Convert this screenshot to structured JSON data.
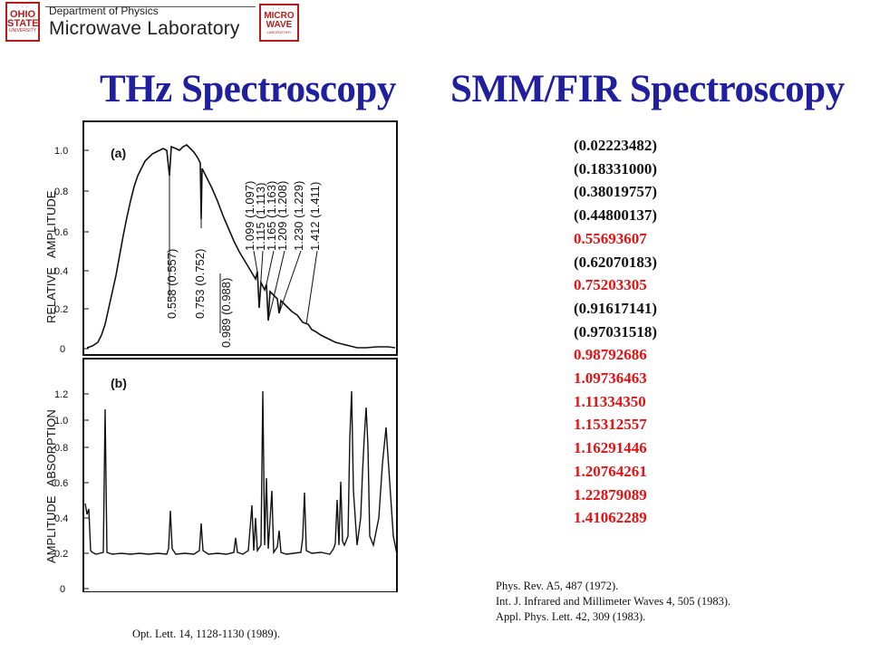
{
  "header": {
    "dept": "Department of Physics",
    "lab": "Microwave Laboratory",
    "osu_logo": "OHIO STATE UNIVERSITY",
    "mw_logo": "MICRO WAVE LABORATORY"
  },
  "titles": {
    "left": "THz Spectroscopy",
    "right": "SMM/FIR Spectroscopy",
    "color": "#1f1fa0"
  },
  "figure": {
    "panel_a": {
      "label": "(a)",
      "ylabel": "RELATIVE   AMPLITUDE",
      "yticks": [
        "0",
        "0.2",
        "0.4",
        "0.6",
        "0.8",
        "1.0"
      ],
      "annotations": [
        "0.558 (0.557)",
        "0.753 (0.752)",
        "0.989 (0.988)",
        "1.099 (1.097)",
        "1.115 (1.113)",
        "1.165 (1.163)",
        "1.209 (1.208)",
        "1.230 (1.229)",
        "1.412 (1.411)"
      ]
    },
    "panel_b": {
      "label": "(b)",
      "ylabel": "AMPLITUDE   ABSORPTION",
      "yticks": [
        "0",
        "0.2",
        "0.4",
        "0.6",
        "0.8",
        "1.0",
        "1.2"
      ]
    }
  },
  "values": [
    {
      "text": "(0.02223482)",
      "highlight": false
    },
    {
      "text": "(0.18331000)",
      "highlight": false
    },
    {
      "text": "(0.38019757)",
      "highlight": false
    },
    {
      "text": "(0.44800137)",
      "highlight": false
    },
    {
      "text": "0.55693607",
      "highlight": true
    },
    {
      "text": "(0.62070183)",
      "highlight": false
    },
    {
      "text": "0.75203305",
      "highlight": true
    },
    {
      "text": "(0.91617141)",
      "highlight": false
    },
    {
      "text": "(0.97031518)",
      "highlight": false
    },
    {
      "text": "0.98792686",
      "highlight": true
    },
    {
      "text": "1.09736463",
      "highlight": true
    },
    {
      "text": "1.11334350",
      "highlight": true
    },
    {
      "text": "1.15312557",
      "highlight": true
    },
    {
      "text": "1.16291446",
      "highlight": true
    },
    {
      "text": "1.20764261",
      "highlight": true
    },
    {
      "text": "1.22879089",
      "highlight": true
    },
    {
      "text": "1.41062289",
      "highlight": true
    }
  ],
  "colors": {
    "highlight": "#e81010",
    "plain": "#111111"
  },
  "references_right": [
    "Phys. Rev. A5, 487 (1972).",
    "Int. J. Infrared and Millimeter Waves 4, 505 (1983).",
    "Appl. Phys. Lett. 42, 309 (1983)."
  ],
  "reference_left": "Opt. Lett. 14, 1128-1130 (1989)."
}
